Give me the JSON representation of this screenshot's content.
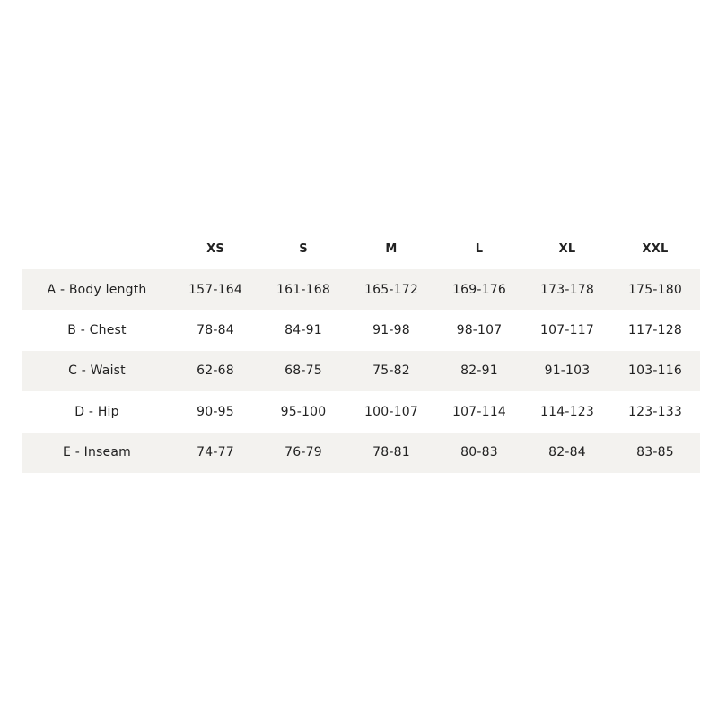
{
  "size_chart": {
    "columns": [
      "",
      "XS",
      "S",
      "M",
      "L",
      "XL",
      "XXL"
    ],
    "rows": [
      {
        "label": "A - Body length",
        "values": [
          "157-164",
          "161-168",
          "165-172",
          "169-176",
          "173-178",
          "175-180"
        ]
      },
      {
        "label": "B - Chest",
        "values": [
          "78-84",
          "84-91",
          "91-98",
          "98-107",
          "107-117",
          "117-128"
        ]
      },
      {
        "label": "C - Waist",
        "values": [
          "62-68",
          "68-75",
          "75-82",
          "82-91",
          "91-103",
          "103-116"
        ]
      },
      {
        "label": "D - Hip",
        "values": [
          "90-95",
          "95-100",
          "100-107",
          "107-114",
          "114-123",
          "123-133"
        ]
      },
      {
        "label": "E - Inseam",
        "values": [
          "74-77",
          "76-79",
          "78-81",
          "80-83",
          "82-84",
          "83-85"
        ]
      }
    ],
    "shade_color": "#f3f2ef"
  }
}
